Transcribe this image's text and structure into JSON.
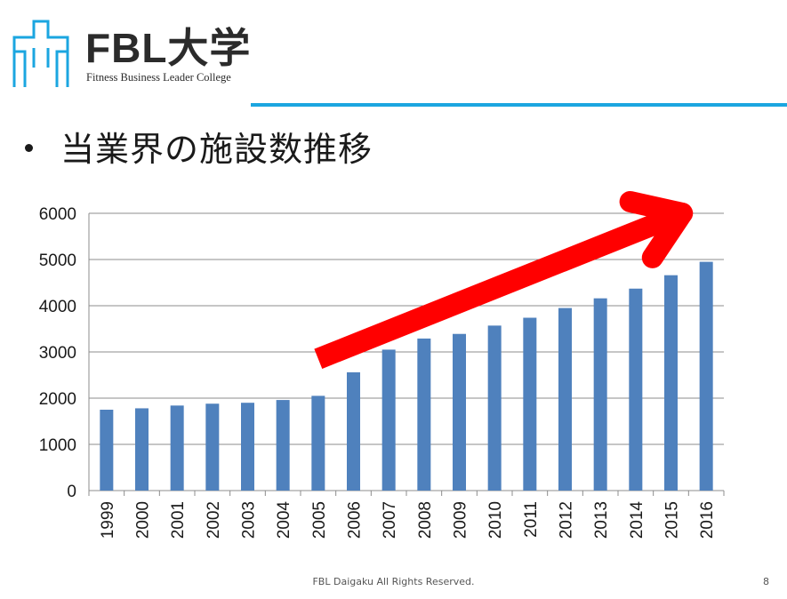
{
  "logo": {
    "title": "FBL大学",
    "subtitle": "Fitness Business Leader College",
    "icon": "building-logo-icon",
    "color": "#1ba6e0"
  },
  "slide": {
    "heading": "当業界の施設数推移",
    "footer": "FBL Daigaku All Rights Reserved.",
    "page_number": "8"
  },
  "chart_data": {
    "type": "bar",
    "title": "",
    "xlabel": "",
    "ylabel": "",
    "categories": [
      "1999",
      "2000",
      "2001",
      "2002",
      "2003",
      "2004",
      "2005",
      "2006",
      "2007",
      "2008",
      "2009",
      "2010",
      "2011",
      "2012",
      "2013",
      "2014",
      "2015",
      "2016"
    ],
    "values": [
      1750,
      1780,
      1840,
      1880,
      1900,
      1960,
      2050,
      2560,
      3050,
      3290,
      3390,
      3570,
      3740,
      3950,
      4160,
      4370,
      4660,
      4950
    ],
    "ylim": [
      0,
      6000
    ],
    "yticks": [
      "0",
      "1000",
      "2000",
      "3000",
      "4000",
      "5000",
      "6000"
    ],
    "grid": true,
    "bar_color": "#4f81bd",
    "annotation": {
      "type": "trend-arrow",
      "color": "#ff0000",
      "from": {
        "category": "2005",
        "value": 2850
      },
      "to": {
        "category": "2016",
        "value": 6000
      }
    }
  }
}
